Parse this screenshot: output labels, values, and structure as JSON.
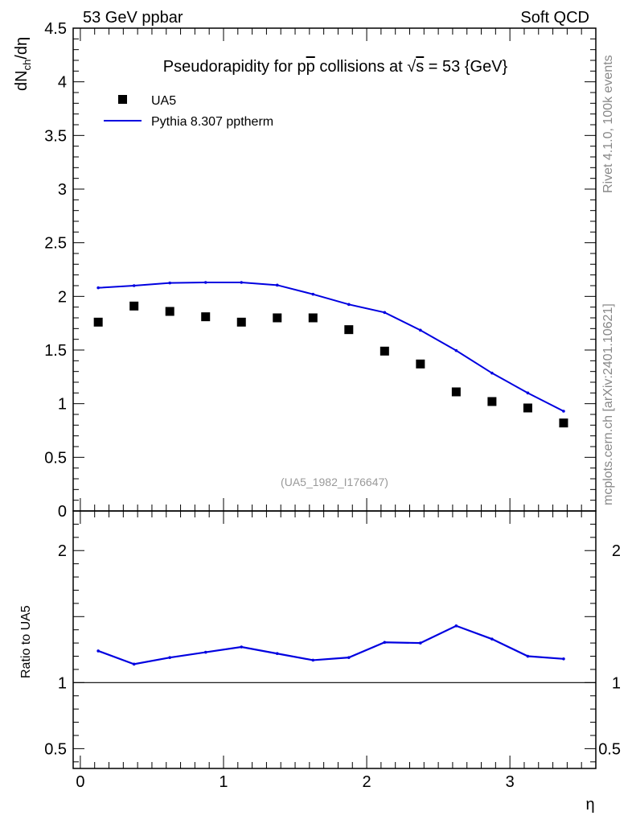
{
  "header": {
    "left": "53 GeV ppbar",
    "right": "Soft QCD"
  },
  "side_labels": {
    "rivet": "Rivet 4.1.0,  100k events",
    "mcplots": "mcplots.cern.ch [arXiv:2401.10621]"
  },
  "chart_data": [
    {
      "type": "scatter",
      "title_parts": {
        "pre": "Pseudorapidity for p",
        "pbar": "p",
        "mid": " collisions at ",
        "sqrt": "√",
        "s": "s",
        "post": " = 53 {GeV}"
      },
      "ylabel_parts": {
        "main": "dN",
        "sub": "ch",
        "rest": "/dη"
      },
      "watermark": "(UA5_1982_I176647)",
      "xlim": [
        -0.05,
        3.6
      ],
      "ylim": [
        0,
        4.5
      ],
      "yticks": [
        "0",
        "0.5",
        "1",
        "1.5",
        "2",
        "2.5",
        "3",
        "3.5",
        "4",
        "4.5"
      ],
      "legend": {
        "position": "top-left",
        "entries": [
          "UA5",
          "Pythia 8.307 pptherm"
        ]
      },
      "series": [
        {
          "name": "UA5",
          "style": "markers",
          "color": "#000000",
          "x": [
            0.125,
            0.375,
            0.625,
            0.875,
            1.125,
            1.375,
            1.625,
            1.875,
            2.125,
            2.375,
            2.625,
            2.875,
            3.125,
            3.375
          ],
          "y": [
            1.76,
            1.91,
            1.86,
            1.81,
            1.76,
            1.8,
            1.8,
            1.69,
            1.49,
            1.37,
            1.11,
            1.02,
            0.96,
            0.82
          ]
        },
        {
          "name": "Pythia 8.307 pptherm",
          "style": "line",
          "color": "#0000e0",
          "x": [
            0.125,
            0.375,
            0.625,
            0.875,
            1.125,
            1.375,
            1.625,
            1.875,
            2.125,
            2.375,
            2.625,
            2.875,
            3.125,
            3.375
          ],
          "y": [
            2.08,
            2.1,
            2.125,
            2.13,
            2.13,
            2.105,
            2.02,
            1.925,
            1.85,
            1.685,
            1.495,
            1.285,
            1.1,
            0.93
          ]
        }
      ]
    },
    {
      "type": "line",
      "ylabel": "Ratio to UA5",
      "xlabel": "η",
      "xlim": [
        -0.05,
        3.6
      ],
      "ylim": [
        0.35,
        2.3
      ],
      "xticks": [
        "0",
        "1",
        "2",
        "3"
      ],
      "yticks": [
        "0.5",
        "1",
        "2"
      ],
      "reference": 1.0,
      "series": [
        {
          "name": "Pythia 8.307 pptherm / UA5",
          "color": "#0000e0",
          "x": [
            0.125,
            0.375,
            0.625,
            0.875,
            1.125,
            1.375,
            1.625,
            1.875,
            2.125,
            2.375,
            2.625,
            2.875,
            3.125,
            3.375
          ],
          "y": [
            1.24,
            1.14,
            1.19,
            1.23,
            1.27,
            1.22,
            1.17,
            1.19,
            1.305,
            1.3,
            1.43,
            1.33,
            1.2,
            1.18
          ]
        }
      ]
    }
  ]
}
